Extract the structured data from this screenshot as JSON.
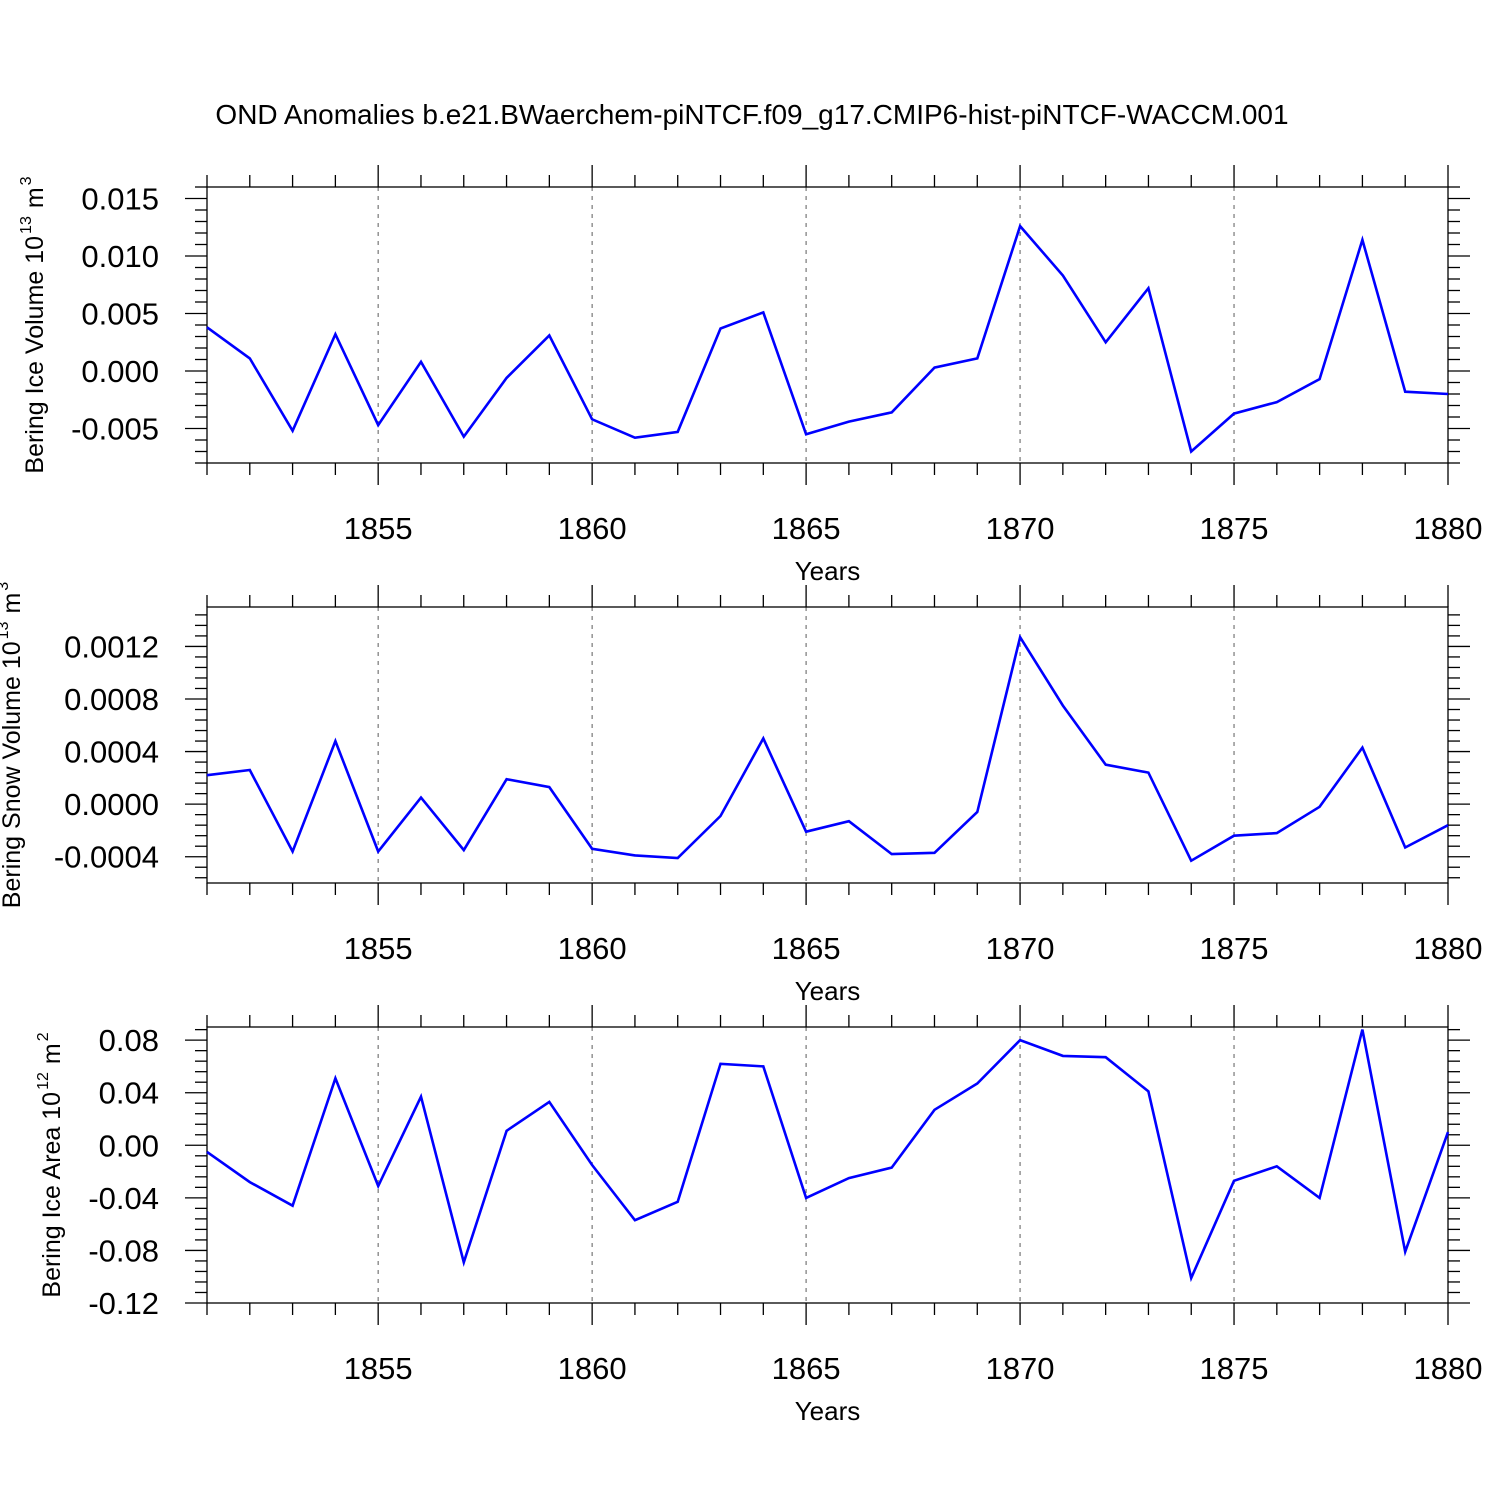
{
  "suptitle": "OND Anomalies b.e21.BWaerchem-piNTCF.f09_g17.CMIP6-hist-piNTCF-WACCM.001",
  "line_color": "#0000ff",
  "chart_data": [
    {
      "type": "line",
      "title": "",
      "xlabel": "Years",
      "ylabel": "Bering Ice Volume 10",
      "ylabel_sup": "13",
      "ylabel_unit": "m",
      "ylabel_unit_sup": "3",
      "xlim": [
        1851,
        1880
      ],
      "ylim": [
        -0.008,
        0.016
      ],
      "xticks": [
        1855,
        1860,
        1865,
        1870,
        1875,
        1880
      ],
      "xtick_labels": [
        "1855",
        "1860",
        "1865",
        "1870",
        "1875",
        "1880"
      ],
      "yticks": [
        0.015,
        0.01,
        0.005,
        0.0,
        -0.005
      ],
      "ytick_labels": [
        "0.015",
        "0.010",
        "0.005",
        "0.000",
        "-0.005"
      ],
      "grid": "vertical dashed at major x ticks",
      "series": [
        {
          "name": "Bering Ice Volume",
          "x": [
            1851,
            1852,
            1853,
            1854,
            1855,
            1856,
            1857,
            1858,
            1859,
            1860,
            1861,
            1862,
            1863,
            1864,
            1865,
            1866,
            1867,
            1868,
            1869,
            1870,
            1871,
            1872,
            1873,
            1874,
            1875,
            1876,
            1877,
            1878,
            1879,
            1880
          ],
          "values": [
            0.0038,
            0.0011,
            -0.0052,
            0.0032,
            -0.0047,
            0.0008,
            -0.0057,
            -0.0006,
            0.0031,
            -0.0042,
            -0.0058,
            -0.0053,
            0.0037,
            0.0051,
            -0.0055,
            -0.0044,
            -0.0036,
            0.0003,
            0.0011,
            0.0126,
            0.0083,
            0.0025,
            0.0072,
            -0.007,
            -0.0037,
            -0.0027,
            -0.0007,
            0.0114,
            -0.0018,
            -0.002
          ]
        }
      ]
    },
    {
      "type": "line",
      "title": "",
      "xlabel": "Years",
      "ylabel": "Bering Snow Volume 10",
      "ylabel_sup": "13",
      "ylabel_unit": "m",
      "ylabel_unit_sup": "3",
      "xlim": [
        1851,
        1880
      ],
      "ylim": [
        -0.0006,
        0.0015
      ],
      "xticks": [
        1855,
        1860,
        1865,
        1870,
        1875,
        1880
      ],
      "xtick_labels": [
        "1855",
        "1860",
        "1865",
        "1870",
        "1875",
        "1880"
      ],
      "yticks": [
        0.0012,
        0.0008,
        0.0004,
        0.0,
        -0.0004
      ],
      "ytick_labels": [
        "0.0012",
        "0.0008",
        "0.0004",
        "0.0000",
        "-0.0004"
      ],
      "grid": "vertical dashed at major x ticks",
      "series": [
        {
          "name": "Bering Snow Volume",
          "x": [
            1851,
            1852,
            1853,
            1854,
            1855,
            1856,
            1857,
            1858,
            1859,
            1860,
            1861,
            1862,
            1863,
            1864,
            1865,
            1866,
            1867,
            1868,
            1869,
            1870,
            1871,
            1872,
            1873,
            1874,
            1875,
            1876,
            1877,
            1878,
            1879,
            1880
          ],
          "values": [
            0.00022,
            0.00026,
            -0.00036,
            0.00048,
            -0.00036,
            5e-05,
            -0.00035,
            0.00019,
            0.00013,
            -0.00034,
            -0.00039,
            -0.00041,
            -9e-05,
            0.0005,
            -0.00021,
            -0.00013,
            -0.00038,
            -0.00037,
            -6e-05,
            0.00127,
            0.00075,
            0.0003,
            0.00024,
            -0.00043,
            -0.00024,
            -0.00022,
            -2e-05,
            0.00043,
            -0.00033,
            -0.00016
          ]
        }
      ]
    },
    {
      "type": "line",
      "title": "",
      "xlabel": "Years",
      "ylabel": "Bering Ice Area 10",
      "ylabel_sup": "12",
      "ylabel_unit": "m",
      "ylabel_unit_sup": "2",
      "xlim": [
        1851,
        1880
      ],
      "ylim": [
        -0.12,
        0.09
      ],
      "xticks": [
        1855,
        1860,
        1865,
        1870,
        1875,
        1880
      ],
      "xtick_labels": [
        "1855",
        "1860",
        "1865",
        "1870",
        "1875",
        "1880"
      ],
      "yticks": [
        0.08,
        0.04,
        0.0,
        -0.04,
        -0.08,
        -0.12
      ],
      "ytick_labels": [
        "0.08",
        "0.04",
        "0.00",
        "-0.04",
        "-0.08",
        "-0.12"
      ],
      "grid": "vertical dashed at major x ticks",
      "series": [
        {
          "name": "Bering Ice Area",
          "x": [
            1851,
            1852,
            1853,
            1854,
            1855,
            1856,
            1857,
            1858,
            1859,
            1860,
            1861,
            1862,
            1863,
            1864,
            1865,
            1866,
            1867,
            1868,
            1869,
            1870,
            1871,
            1872,
            1873,
            1874,
            1875,
            1876,
            1877,
            1878,
            1879,
            1880
          ],
          "values": [
            -0.005,
            -0.028,
            -0.046,
            0.051,
            -0.031,
            0.037,
            -0.089,
            0.011,
            0.033,
            -0.015,
            -0.057,
            -0.043,
            0.062,
            0.06,
            -0.04,
            -0.025,
            -0.017,
            0.027,
            0.047,
            0.08,
            0.068,
            0.067,
            0.041,
            -0.101,
            -0.027,
            -0.016,
            -0.04,
            0.088,
            -0.081,
            0.01
          ]
        }
      ]
    }
  ]
}
